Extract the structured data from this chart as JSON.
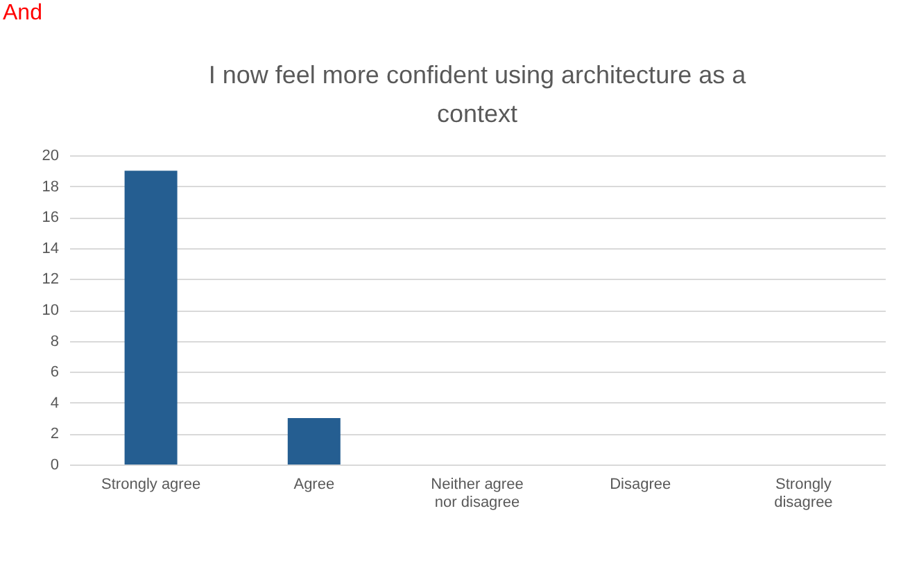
{
  "chart_data": {
    "type": "bar",
    "title": "I now feel more confident using architecture as a context",
    "categories": [
      "Strongly agree",
      "Agree",
      "Neither agree nor disagree",
      "Disagree",
      "Strongly disagree"
    ],
    "values": [
      19,
      3,
      0,
      0,
      0
    ],
    "color": "#255e91",
    "ylim": [
      0,
      20
    ],
    "yticks": [
      0,
      2,
      4,
      6,
      8,
      10,
      12,
      14,
      16,
      18,
      20
    ],
    "grid": "y",
    "annotations": [
      "And"
    ]
  }
}
